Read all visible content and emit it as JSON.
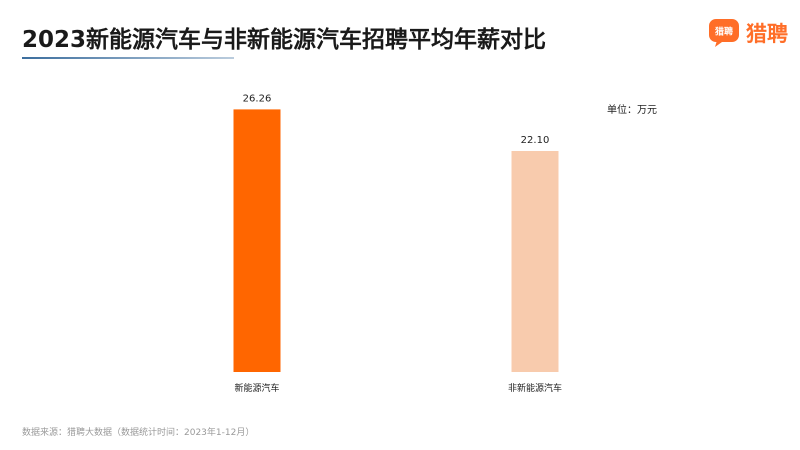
{
  "header": {
    "title": "2023新能源汽车与非新能源汽车招聘平均年薪对比",
    "underline_color": "#3c6e9e"
  },
  "logo": {
    "mark_text": "猎聘",
    "text": "猎聘",
    "color": "#ff6e28"
  },
  "unit_label": "单位：万元",
  "source": "数据来源：猎聘大数据（数据统计时间：2023年1-12月）",
  "chart_data": {
    "type": "bar",
    "title": "2023新能源汽车与非新能源汽车招聘平均年薪对比",
    "unit": "万元",
    "categories": [
      "新能源汽车",
      "非新能源汽车"
    ],
    "values": [
      26.26,
      22.1
    ],
    "data_labels": [
      "26.26",
      "22.10"
    ],
    "colors": [
      "#ff6600",
      "#f8cbad"
    ],
    "ylim": [
      0,
      28
    ],
    "grid": false,
    "xlabel": "",
    "ylabel": ""
  }
}
